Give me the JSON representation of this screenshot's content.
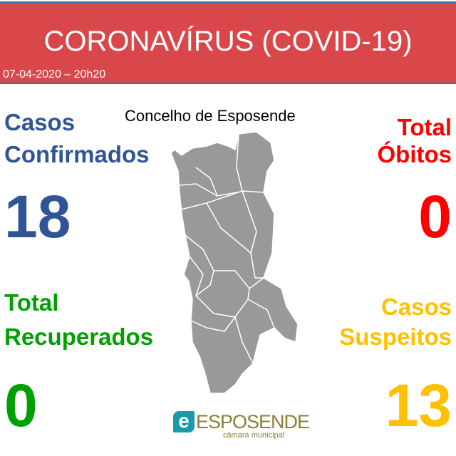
{
  "header": {
    "title": "CORONAVÍRUS (COVID-19)",
    "date": "07-04-2020 – 20h20"
  },
  "map": {
    "title": "Concelho de Esposende",
    "fill": "#999999"
  },
  "confirmed": {
    "line1": "Casos",
    "line2": "Confirmados",
    "value": "18",
    "color": "#2f5597"
  },
  "recovered": {
    "line1": "Total",
    "line2": "Recuperados",
    "value": "0",
    "color": "#00a000"
  },
  "deaths": {
    "line1": "Total",
    "line2": "Óbitos",
    "value": "0",
    "color": "#ff0000"
  },
  "suspected": {
    "line1": "Casos",
    "line2": "Suspeitos",
    "value": "13",
    "color": "#ffc000"
  },
  "logo": {
    "name": "ESPOSENDE",
    "sub": "câmara municipal"
  },
  "colors": {
    "header": "#d9474a",
    "border": "#41719c"
  }
}
